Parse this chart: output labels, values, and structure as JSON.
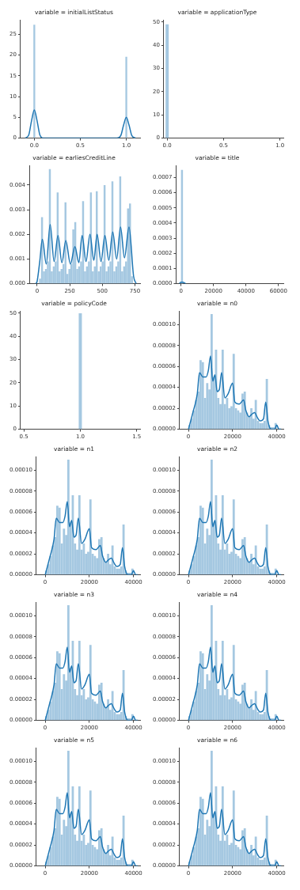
{
  "chart_data": [
    {
      "type": "histogram",
      "title": "variable = initialListStatus",
      "xlim": [
        -0.15,
        1.15
      ],
      "xticks": [
        {
          "value": 0,
          "label": "0.0"
        },
        {
          "value": 0.5,
          "label": "0.5"
        },
        {
          "value": 1,
          "label": "1.0"
        }
      ],
      "ylim": [
        0,
        28.5
      ],
      "yticks": [
        0,
        5,
        10,
        15,
        20,
        25
      ],
      "series": [
        {
          "type": "histogram",
          "color": "#a5c8e1",
          "bins": [
            -0.01,
            0.01,
            0.99,
            1.01
          ],
          "values": [
            27.3,
            0,
            19.6
          ]
        },
        {
          "type": "line",
          "color": "#1f77b4",
          "x": [
            -0.1,
            -0.06,
            -0.03,
            0,
            0.03,
            0.06,
            0.1,
            0.9,
            0.94,
            0.97,
            1.0,
            1.03,
            1.06,
            1.1
          ],
          "values": [
            0,
            0.8,
            4.2,
            6.8,
            4.2,
            0.8,
            0,
            0,
            0.6,
            3.1,
            5.0,
            3.1,
            0.6,
            0
          ]
        }
      ]
    },
    {
      "type": "histogram",
      "title": "variable = applicationType",
      "xlim": [
        -0.03,
        1.03
      ],
      "xticks": [
        {
          "value": 0,
          "label": "0.0"
        },
        {
          "value": 0.5,
          "label": "0.5"
        },
        {
          "value": 1,
          "label": "1.0"
        }
      ],
      "ylim": [
        0,
        51
      ],
      "yticks": [
        0,
        10,
        20,
        30,
        40,
        50
      ],
      "series": [
        {
          "type": "bar",
          "color": "#a5c8e1",
          "x": [
            0
          ],
          "values": [
            49
          ]
        }
      ]
    },
    {
      "type": "histogram",
      "title": "variable = earliesCreditLine",
      "xlim": [
        -60,
        790
      ],
      "xticks": [
        0,
        250,
        500,
        750
      ],
      "ylim": [
        0,
        0.0048
      ],
      "yticks": [
        {
          "value": 0,
          "label": "0.000"
        },
        {
          "value": 0.001,
          "label": "0.001"
        },
        {
          "value": 0.002,
          "label": "0.002"
        },
        {
          "value": 0.003,
          "label": "0.003"
        },
        {
          "value": 0.004,
          "label": "0.004"
        }
      ],
      "series": [
        {
          "type": "histogram",
          "color": "#a5c8e1",
          "bins": [
            15,
            30,
            45,
            60,
            75,
            90,
            105,
            120,
            135,
            150,
            165,
            180,
            195,
            210,
            225,
            240,
            255,
            270,
            285,
            300,
            315,
            330,
            345,
            360,
            375,
            390,
            405,
            420,
            435,
            450,
            465,
            480,
            495,
            510,
            525,
            540,
            555,
            570,
            585,
            600,
            615,
            630,
            645,
            660,
            675,
            690,
            705,
            720,
            735
          ],
          "values": [
            0.0002,
            0.0027,
            0.0005,
            0.0006,
            0.0009,
            0.00465,
            0.0005,
            0.0007,
            0.0009,
            0.0037,
            0.0005,
            0.0006,
            0.0008,
            0.0033,
            0.0004,
            0.0006,
            0.0008,
            0.0022,
            0.0025,
            0.0006,
            0.0007,
            0.0009,
            0.00335,
            0.0005,
            0.0007,
            0.0009,
            0.0037,
            0.0005,
            0.0007,
            0.00375,
            0.0005,
            0.0007,
            0.0009,
            0.004,
            0.0005,
            0.0007,
            0.0009,
            0.00415,
            0.0005,
            0.0007,
            0.0009,
            0.00435,
            0.0005,
            0.0007,
            0.0009,
            0.00305,
            0.00325,
            0.0003
          ]
        },
        {
          "type": "line",
          "color": "#1f77b4",
          "x": [
            -10,
            0,
            20,
            40,
            70,
            100,
            130,
            160,
            190,
            220,
            255,
            290,
            320,
            345,
            375,
            405,
            435,
            460,
            490,
            520,
            550,
            580,
            610,
            640,
            670,
            705,
            740,
            760
          ],
          "values": [
            0,
            0.0001,
            0.0009,
            0.0018,
            0.0008,
            0.0024,
            0.0009,
            0.00195,
            0.00085,
            0.00175,
            0.0008,
            0.0015,
            0.00085,
            0.00195,
            0.0009,
            0.002,
            0.00095,
            0.002,
            0.0009,
            0.00195,
            0.00095,
            0.0021,
            0.001,
            0.0023,
            0.00105,
            0.0023,
            0.0003,
            0
          ]
        }
      ]
    },
    {
      "type": "histogram",
      "title": "variable = title",
      "xlim": [
        -3000,
        63000
      ],
      "xticks": [
        0,
        20000,
        40000,
        60000
      ],
      "ylim": [
        0,
        0.00078
      ],
      "yticks": [
        {
          "value": 0,
          "label": "0.0000"
        },
        {
          "value": 0.0001,
          "label": "0.0001"
        },
        {
          "value": 0.0002,
          "label": "0.0002"
        },
        {
          "value": 0.0003,
          "label": "0.0003"
        },
        {
          "value": 0.0004,
          "label": "0.0004"
        },
        {
          "value": 0.0005,
          "label": "0.0005"
        },
        {
          "value": 0.0006,
          "label": "0.0006"
        },
        {
          "value": 0.0007,
          "label": "0.0007"
        }
      ],
      "series": [
        {
          "type": "histogram",
          "color": "#a5c8e1",
          "bins": [
            0,
            1220
          ],
          "values": [
            0.00075
          ]
        },
        {
          "type": "line",
          "color": "#1f77b4",
          "x": [
            -1000,
            0,
            1000,
            3000
          ],
          "values": [
            0,
            1e-05,
            1e-05,
            0
          ]
        }
      ]
    },
    {
      "type": "histogram",
      "title": "variable = policyCode",
      "xlim": [
        0.47,
        1.53
      ],
      "xticks": [
        {
          "value": 0.5,
          "label": "0.5"
        },
        {
          "value": 1,
          "label": "1.0"
        },
        {
          "value": 1.5,
          "label": "1.5"
        }
      ],
      "ylim": [
        0,
        51
      ],
      "yticks": [
        0,
        10,
        20,
        30,
        40,
        50
      ],
      "series": [
        {
          "type": "bar",
          "color": "#a5c8e1",
          "x": [
            1
          ],
          "values": [
            50
          ]
        }
      ]
    },
    {
      "type": "histogram",
      "title": "variable = n0",
      "xlim": [
        -4000,
        43000
      ],
      "xticks": [
        0,
        20000,
        40000
      ],
      "ylim": [
        0,
        0.000113
      ],
      "yticks": [
        {
          "value": 0,
          "label": "0.00000"
        },
        {
          "value": 2e-05,
          "label": "0.00002"
        },
        {
          "value": 4e-05,
          "label": "0.00004"
        },
        {
          "value": 6e-05,
          "label": "0.00006"
        },
        {
          "value": 8e-05,
          "label": "0.00008"
        },
        {
          "value": 0.0001,
          "label": "0.00010"
        }
      ],
      "series": [
        {
          "type": "histogram",
          "color": "#a5c8e1",
          "bins": [
            0,
            1000,
            2000,
            3000,
            4000,
            5000,
            6000,
            7000,
            8000,
            9000,
            10000,
            11000,
            12000,
            13000,
            14000,
            15000,
            16000,
            17000,
            18000,
            19000,
            20000,
            21000,
            22000,
            23000,
            24000,
            25000,
            26000,
            27000,
            28000,
            29000,
            30000,
            31000,
            32000,
            33000,
            34000,
            35000,
            36000,
            37000,
            38000,
            39000,
            40000
          ],
          "values": [
            4e-06,
            1e-05,
            1.8e-05,
            2.8e-05,
            3.6e-05,
            6.6e-05,
            6.4e-05,
            3e-05,
            4.4e-05,
            3.8e-05,
            0.00011,
            5e-05,
            7.6e-05,
            3e-05,
            2.4e-05,
            7.6e-05,
            2.4e-05,
            3e-05,
            2e-05,
            2.2e-05,
            7.2e-05,
            2e-05,
            1.8e-05,
            1.6e-05,
            3.4e-05,
            3.6e-05,
            1.6e-05,
            1.2e-05,
            2e-05,
            1e-05,
            2.8e-05,
            8e-06,
            6e-06,
            6e-06,
            8e-06,
            4.8e-05,
            4e-06,
            2e-06,
            2e-06,
            6e-06
          ]
        },
        {
          "type": "line",
          "color": "#1f77b4",
          "x": [
            0,
            2000,
            4000,
            5000,
            6500,
            8000,
            9000,
            10000,
            11000,
            12000,
            13000,
            14000,
            15000,
            16500,
            18000,
            20000,
            21000,
            23000,
            25000,
            26000,
            27500,
            28500,
            30000,
            31000,
            32500,
            34000,
            35000,
            36000,
            37500,
            39000,
            40000,
            41000,
            42000
          ],
          "values": [
            0,
            1.6e-05,
            3.4e-05,
            5.4e-05,
            5e-05,
            5e-05,
            5.6e-05,
            7e-05,
            4.6e-05,
            5.2e-05,
            3.6e-05,
            3.8e-05,
            5.4e-05,
            3e-05,
            3.4e-05,
            4.4e-05,
            2.6e-05,
            2.4e-05,
            2.8e-05,
            1.8e-05,
            1.2e-05,
            1.4e-05,
            1.6e-05,
            1.2e-05,
            8e-06,
            1e-05,
            2.6e-05,
            8e-06,
            0,
            0,
            4e-06,
            0,
            0
          ]
        }
      ]
    },
    {
      "type": "histogram",
      "title": "variable = n1",
      "xlim": [
        -4000,
        43000
      ],
      "xticks": [
        0,
        20000,
        40000
      ],
      "ylim": [
        0,
        0.000113
      ],
      "yticks": [
        {
          "value": 0,
          "label": "0.00000"
        },
        {
          "value": 2e-05,
          "label": "0.00002"
        },
        {
          "value": 4e-05,
          "label": "0.00004"
        },
        {
          "value": 6e-05,
          "label": "0.00006"
        },
        {
          "value": 8e-05,
          "label": "0.00008"
        },
        {
          "value": 0.0001,
          "label": "0.00010"
        }
      ],
      "series": [
        {
          "type": "histogram",
          "color": "#a5c8e1",
          "bins": [
            0,
            1000,
            2000,
            3000,
            4000,
            5000,
            6000,
            7000,
            8000,
            9000,
            10000,
            11000,
            12000,
            13000,
            14000,
            15000,
            16000,
            17000,
            18000,
            19000,
            20000,
            21000,
            22000,
            23000,
            24000,
            25000,
            26000,
            27000,
            28000,
            29000,
            30000,
            31000,
            32000,
            33000,
            34000,
            35000,
            36000,
            37000,
            38000,
            39000,
            40000
          ],
          "values": [
            4e-06,
            1e-05,
            1.8e-05,
            2.8e-05,
            3.6e-05,
            6.6e-05,
            6.4e-05,
            3e-05,
            4.4e-05,
            3.8e-05,
            0.00011,
            5e-05,
            7.6e-05,
            3e-05,
            2.4e-05,
            7.6e-05,
            2.4e-05,
            3e-05,
            2e-05,
            2.2e-05,
            7.2e-05,
            2e-05,
            1.8e-05,
            1.6e-05,
            3.4e-05,
            3.6e-05,
            1.6e-05,
            1.2e-05,
            2e-05,
            1e-05,
            2.8e-05,
            8e-06,
            6e-06,
            6e-06,
            8e-06,
            4.8e-05,
            4e-06,
            2e-06,
            2e-06,
            6e-06
          ]
        },
        {
          "type": "line",
          "color": "#1f77b4",
          "x": [
            0,
            2000,
            4000,
            5000,
            6500,
            8000,
            9000,
            10000,
            11000,
            12000,
            13000,
            14000,
            15000,
            16500,
            18000,
            20000,
            21000,
            23000,
            25000,
            26000,
            27500,
            28500,
            30000,
            31000,
            32500,
            34000,
            35000,
            36000,
            37500,
            39000,
            40000,
            41000,
            42000
          ],
          "values": [
            0,
            1.6e-05,
            3.4e-05,
            5.4e-05,
            5e-05,
            5e-05,
            5.6e-05,
            7e-05,
            4.6e-05,
            5.2e-05,
            3.6e-05,
            3.8e-05,
            5.4e-05,
            3e-05,
            3.4e-05,
            4.4e-05,
            2.6e-05,
            2.4e-05,
            2.8e-05,
            1.8e-05,
            1.2e-05,
            1.4e-05,
            1.6e-05,
            1.2e-05,
            8e-06,
            1e-05,
            2.6e-05,
            8e-06,
            0,
            0,
            4e-06,
            0,
            0
          ]
        }
      ]
    },
    {
      "type": "histogram",
      "title": "variable = n2",
      "xlim": [
        -4000,
        43000
      ],
      "xticks": [
        0,
        20000,
        40000
      ],
      "ylim": [
        0,
        0.000113
      ],
      "yticks": [
        {
          "value": 0,
          "label": "0.00000"
        },
        {
          "value": 2e-05,
          "label": "0.00002"
        },
        {
          "value": 4e-05,
          "label": "0.00004"
        },
        {
          "value": 6e-05,
          "label": "0.00006"
        },
        {
          "value": 8e-05,
          "label": "0.00008"
        },
        {
          "value": 0.0001,
          "label": "0.00010"
        }
      ],
      "series": [
        {
          "type": "histogram",
          "color": "#a5c8e1",
          "bins": [
            0,
            1000,
            2000,
            3000,
            4000,
            5000,
            6000,
            7000,
            8000,
            9000,
            10000,
            11000,
            12000,
            13000,
            14000,
            15000,
            16000,
            17000,
            18000,
            19000,
            20000,
            21000,
            22000,
            23000,
            24000,
            25000,
            26000,
            27000,
            28000,
            29000,
            30000,
            31000,
            32000,
            33000,
            34000,
            35000,
            36000,
            37000,
            38000,
            39000,
            40000
          ],
          "values": [
            4e-06,
            1e-05,
            1.8e-05,
            2.8e-05,
            3.6e-05,
            6.6e-05,
            6.4e-05,
            3e-05,
            4.4e-05,
            3.8e-05,
            0.00011,
            5e-05,
            7.6e-05,
            3e-05,
            2.4e-05,
            7.6e-05,
            2.4e-05,
            3e-05,
            2e-05,
            2.2e-05,
            7.2e-05,
            2e-05,
            1.8e-05,
            1.6e-05,
            3.4e-05,
            3.6e-05,
            1.6e-05,
            1.2e-05,
            2e-05,
            1e-05,
            2.8e-05,
            8e-06,
            6e-06,
            6e-06,
            8e-06,
            4.8e-05,
            4e-06,
            2e-06,
            2e-06,
            6e-06
          ]
        },
        {
          "type": "line",
          "color": "#1f77b4",
          "x": [
            0,
            2000,
            4000,
            5000,
            6500,
            8000,
            9000,
            10000,
            11000,
            12000,
            13000,
            14000,
            15000,
            16500,
            18000,
            20000,
            21000,
            23000,
            25000,
            26000,
            27500,
            28500,
            30000,
            31000,
            32500,
            34000,
            35000,
            36000,
            37500,
            39000,
            40000,
            41000,
            42000
          ],
          "values": [
            0,
            1.6e-05,
            3.4e-05,
            5.4e-05,
            5e-05,
            5e-05,
            5.6e-05,
            7e-05,
            4.6e-05,
            5.2e-05,
            3.6e-05,
            3.8e-05,
            5.4e-05,
            3e-05,
            3.4e-05,
            4.4e-05,
            2.6e-05,
            2.4e-05,
            2.8e-05,
            1.8e-05,
            1.2e-05,
            1.4e-05,
            1.6e-05,
            1.2e-05,
            8e-06,
            1e-05,
            2.6e-05,
            8e-06,
            0,
            0,
            4e-06,
            0,
            0
          ]
        }
      ]
    },
    {
      "type": "histogram",
      "title": "variable = n3",
      "xlim": [
        -4000,
        43000
      ],
      "xticks": [
        0,
        20000,
        40000
      ],
      "ylim": [
        0,
        0.000113
      ],
      "yticks": [
        {
          "value": 0,
          "label": "0.00000"
        },
        {
          "value": 2e-05,
          "label": "0.00002"
        },
        {
          "value": 4e-05,
          "label": "0.00004"
        },
        {
          "value": 6e-05,
          "label": "0.00006"
        },
        {
          "value": 8e-05,
          "label": "0.00008"
        },
        {
          "value": 0.0001,
          "label": "0.00010"
        }
      ],
      "series": [
        {
          "type": "histogram",
          "color": "#a5c8e1",
          "bins": [
            0,
            1000,
            2000,
            3000,
            4000,
            5000,
            6000,
            7000,
            8000,
            9000,
            10000,
            11000,
            12000,
            13000,
            14000,
            15000,
            16000,
            17000,
            18000,
            19000,
            20000,
            21000,
            22000,
            23000,
            24000,
            25000,
            26000,
            27000,
            28000,
            29000,
            30000,
            31000,
            32000,
            33000,
            34000,
            35000,
            36000,
            37000,
            38000,
            39000,
            40000
          ],
          "values": [
            4e-06,
            1e-05,
            1.8e-05,
            2.8e-05,
            3.6e-05,
            6.6e-05,
            6.4e-05,
            3e-05,
            4.4e-05,
            3.8e-05,
            0.00011,
            5e-05,
            7.6e-05,
            3e-05,
            2.4e-05,
            7.6e-05,
            2.4e-05,
            3e-05,
            2e-05,
            2.2e-05,
            7.2e-05,
            2e-05,
            1.8e-05,
            1.6e-05,
            3.4e-05,
            3.6e-05,
            1.6e-05,
            1.2e-05,
            2e-05,
            1e-05,
            2.8e-05,
            8e-06,
            6e-06,
            6e-06,
            8e-06,
            4.8e-05,
            4e-06,
            2e-06,
            2e-06,
            6e-06
          ]
        },
        {
          "type": "line",
          "color": "#1f77b4",
          "x": [
            0,
            2000,
            4000,
            5000,
            6500,
            8000,
            9000,
            10000,
            11000,
            12000,
            13000,
            14000,
            15000,
            16500,
            18000,
            20000,
            21000,
            23000,
            25000,
            26000,
            27500,
            28500,
            30000,
            31000,
            32500,
            34000,
            35000,
            36000,
            37500,
            39000,
            40000,
            41000,
            42000
          ],
          "values": [
            0,
            1.6e-05,
            3.4e-05,
            5.4e-05,
            5e-05,
            5e-05,
            5.6e-05,
            7e-05,
            4.6e-05,
            5.2e-05,
            3.6e-05,
            3.8e-05,
            5.4e-05,
            3e-05,
            3.4e-05,
            4.4e-05,
            2.6e-05,
            2.4e-05,
            2.8e-05,
            1.8e-05,
            1.2e-05,
            1.4e-05,
            1.6e-05,
            1.2e-05,
            8e-06,
            1e-05,
            2.6e-05,
            8e-06,
            0,
            0,
            4e-06,
            0,
            0
          ]
        }
      ]
    },
    {
      "type": "histogram",
      "title": "variable = n4",
      "xlim": [
        -4000,
        43000
      ],
      "xticks": [
        0,
        20000,
        40000
      ],
      "ylim": [
        0,
        0.000113
      ],
      "yticks": [
        {
          "value": 0,
          "label": "0.00000"
        },
        {
          "value": 2e-05,
          "label": "0.00002"
        },
        {
          "value": 4e-05,
          "label": "0.00004"
        },
        {
          "value": 6e-05,
          "label": "0.00006"
        },
        {
          "value": 8e-05,
          "label": "0.00008"
        },
        {
          "value": 0.0001,
          "label": "0.00010"
        }
      ],
      "series": [
        {
          "type": "histogram",
          "color": "#a5c8e1",
          "bins": [
            0,
            1000,
            2000,
            3000,
            4000,
            5000,
            6000,
            7000,
            8000,
            9000,
            10000,
            11000,
            12000,
            13000,
            14000,
            15000,
            16000,
            17000,
            18000,
            19000,
            20000,
            21000,
            22000,
            23000,
            24000,
            25000,
            26000,
            27000,
            28000,
            29000,
            30000,
            31000,
            32000,
            33000,
            34000,
            35000,
            36000,
            37000,
            38000,
            39000,
            40000
          ],
          "values": [
            4e-06,
            1e-05,
            1.8e-05,
            2.8e-05,
            3.6e-05,
            6.6e-05,
            6.4e-05,
            3e-05,
            4.4e-05,
            3.8e-05,
            0.00011,
            5e-05,
            7.6e-05,
            3e-05,
            2.4e-05,
            7.6e-05,
            2.4e-05,
            3e-05,
            2e-05,
            2.2e-05,
            7.2e-05,
            2e-05,
            1.8e-05,
            1.6e-05,
            3.4e-05,
            3.6e-05,
            1.6e-05,
            1.2e-05,
            2e-05,
            1e-05,
            2.8e-05,
            8e-06,
            6e-06,
            6e-06,
            8e-06,
            4.8e-05,
            4e-06,
            2e-06,
            2e-06,
            6e-06
          ]
        },
        {
          "type": "line",
          "color": "#1f77b4",
          "x": [
            0,
            2000,
            4000,
            5000,
            6500,
            8000,
            9000,
            10000,
            11000,
            12000,
            13000,
            14000,
            15000,
            16500,
            18000,
            20000,
            21000,
            23000,
            25000,
            26000,
            27500,
            28500,
            30000,
            31000,
            32500,
            34000,
            35000,
            36000,
            37500,
            39000,
            40000,
            41000,
            42000
          ],
          "values": [
            0,
            1.6e-05,
            3.4e-05,
            5.4e-05,
            5e-05,
            5e-05,
            5.6e-05,
            7e-05,
            4.6e-05,
            5.2e-05,
            3.6e-05,
            3.8e-05,
            5.4e-05,
            3e-05,
            3.4e-05,
            4.4e-05,
            2.6e-05,
            2.4e-05,
            2.8e-05,
            1.8e-05,
            1.2e-05,
            1.4e-05,
            1.6e-05,
            1.2e-05,
            8e-06,
            1e-05,
            2.6e-05,
            8e-06,
            0,
            0,
            4e-06,
            0,
            0
          ]
        }
      ]
    },
    {
      "type": "histogram",
      "title": "variable = n5",
      "xlim": [
        -4000,
        43000
      ],
      "xticks": [
        0,
        20000,
        40000
      ],
      "ylim": [
        0,
        0.000113
      ],
      "yticks": [
        {
          "value": 0,
          "label": "0.00000"
        },
        {
          "value": 2e-05,
          "label": "0.00002"
        },
        {
          "value": 4e-05,
          "label": "0.00004"
        },
        {
          "value": 6e-05,
          "label": "0.00006"
        },
        {
          "value": 8e-05,
          "label": "0.00008"
        },
        {
          "value": 0.0001,
          "label": "0.00010"
        }
      ],
      "series": [
        {
          "type": "histogram",
          "color": "#a5c8e1",
          "bins": [
            0,
            1000,
            2000,
            3000,
            4000,
            5000,
            6000,
            7000,
            8000,
            9000,
            10000,
            11000,
            12000,
            13000,
            14000,
            15000,
            16000,
            17000,
            18000,
            19000,
            20000,
            21000,
            22000,
            23000,
            24000,
            25000,
            26000,
            27000,
            28000,
            29000,
            30000,
            31000,
            32000,
            33000,
            34000,
            35000,
            36000,
            37000,
            38000,
            39000,
            40000
          ],
          "values": [
            4e-06,
            1e-05,
            1.8e-05,
            2.8e-05,
            3.6e-05,
            6.6e-05,
            6.4e-05,
            3e-05,
            4.4e-05,
            3.8e-05,
            0.00011,
            5e-05,
            7.6e-05,
            3e-05,
            2.4e-05,
            7.6e-05,
            2.4e-05,
            3e-05,
            2e-05,
            2.2e-05,
            7.2e-05,
            2e-05,
            1.8e-05,
            1.6e-05,
            3.4e-05,
            3.6e-05,
            1.6e-05,
            1.2e-05,
            2e-05,
            1e-05,
            2.8e-05,
            8e-06,
            6e-06,
            6e-06,
            8e-06,
            4.8e-05,
            4e-06,
            2e-06,
            2e-06,
            6e-06
          ]
        },
        {
          "type": "line",
          "color": "#1f77b4",
          "x": [
            0,
            2000,
            4000,
            5000,
            6500,
            8000,
            9000,
            10000,
            11000,
            12000,
            13000,
            14000,
            15000,
            16500,
            18000,
            20000,
            21000,
            23000,
            25000,
            26000,
            27500,
            28500,
            30000,
            31000,
            32500,
            34000,
            35000,
            36000,
            37500,
            39000,
            40000,
            41000,
            42000
          ],
          "values": [
            0,
            1.6e-05,
            3.4e-05,
            5.4e-05,
            5e-05,
            5e-05,
            5.6e-05,
            7e-05,
            4.6e-05,
            5.2e-05,
            3.6e-05,
            3.8e-05,
            5.4e-05,
            3e-05,
            3.4e-05,
            4.4e-05,
            2.6e-05,
            2.4e-05,
            2.8e-05,
            1.8e-05,
            1.2e-05,
            1.4e-05,
            1.6e-05,
            1.2e-05,
            8e-06,
            1e-05,
            2.6e-05,
            8e-06,
            0,
            0,
            4e-06,
            0,
            0
          ]
        }
      ]
    },
    {
      "type": "histogram",
      "title": "variable = n6",
      "xlim": [
        -4000,
        43000
      ],
      "xticks": [
        0,
        20000,
        40000
      ],
      "ylim": [
        0,
        0.000113
      ],
      "yticks": [
        {
          "value": 0,
          "label": "0.00000"
        },
        {
          "value": 2e-05,
          "label": "0.00002"
        },
        {
          "value": 4e-05,
          "label": "0.00004"
        },
        {
          "value": 6e-05,
          "label": "0.00006"
        },
        {
          "value": 8e-05,
          "label": "0.00008"
        },
        {
          "value": 0.0001,
          "label": "0.00010"
        }
      ],
      "series": [
        {
          "type": "histogram",
          "color": "#a5c8e1",
          "bins": [
            0,
            1000,
            2000,
            3000,
            4000,
            5000,
            6000,
            7000,
            8000,
            9000,
            10000,
            11000,
            12000,
            13000,
            14000,
            15000,
            16000,
            17000,
            18000,
            19000,
            20000,
            21000,
            22000,
            23000,
            24000,
            25000,
            26000,
            27000,
            28000,
            29000,
            30000,
            31000,
            32000,
            33000,
            34000,
            35000,
            36000,
            37000,
            38000,
            39000,
            40000
          ],
          "values": [
            4e-06,
            1e-05,
            1.8e-05,
            2.8e-05,
            3.6e-05,
            6.6e-05,
            6.4e-05,
            3e-05,
            4.4e-05,
            3.8e-05,
            0.00011,
            5e-05,
            7.6e-05,
            3e-05,
            2.4e-05,
            7.6e-05,
            2.4e-05,
            3e-05,
            2e-05,
            2.2e-05,
            7.2e-05,
            2e-05,
            1.8e-05,
            1.6e-05,
            3.4e-05,
            3.6e-05,
            1.6e-05,
            1.2e-05,
            2e-05,
            1e-05,
            2.8e-05,
            8e-06,
            6e-06,
            6e-06,
            8e-06,
            4.8e-05,
            4e-06,
            2e-06,
            2e-06,
            6e-06
          ]
        },
        {
          "type": "line",
          "color": "#1f77b4",
          "x": [
            0,
            2000,
            4000,
            5000,
            6500,
            8000,
            9000,
            10000,
            11000,
            12000,
            13000,
            14000,
            15000,
            16500,
            18000,
            20000,
            21000,
            23000,
            25000,
            26000,
            27500,
            28500,
            30000,
            31000,
            32500,
            34000,
            35000,
            36000,
            37500,
            39000,
            40000,
            41000,
            42000
          ],
          "values": [
            0,
            1.6e-05,
            3.4e-05,
            5.4e-05,
            5e-05,
            5e-05,
            5.6e-05,
            7e-05,
            4.6e-05,
            5.2e-05,
            3.6e-05,
            3.8e-05,
            5.4e-05,
            3e-05,
            3.4e-05,
            4.4e-05,
            2.6e-05,
            2.4e-05,
            2.8e-05,
            1.8e-05,
            1.2e-05,
            1.4e-05,
            1.6e-05,
            1.2e-05,
            8e-06,
            1e-05,
            2.6e-05,
            8e-06,
            0,
            0,
            4e-06,
            0,
            0
          ]
        }
      ]
    }
  ]
}
